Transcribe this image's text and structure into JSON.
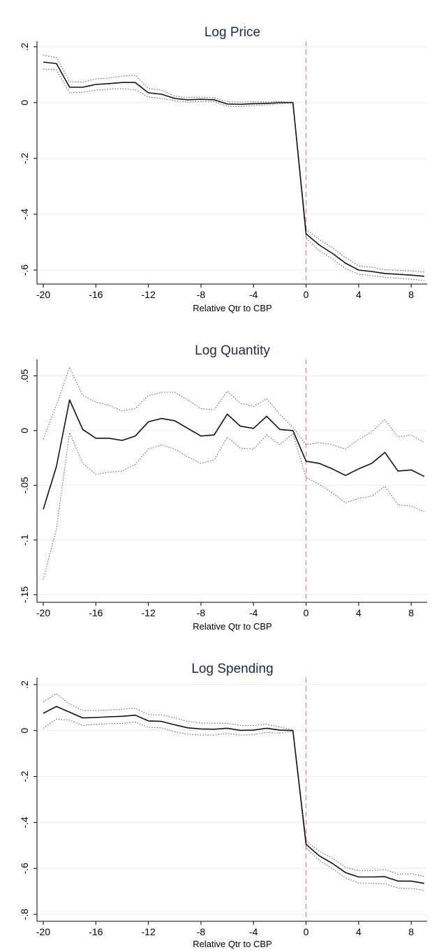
{
  "figure": {
    "accent_reference_color": "#e8889a"
  },
  "chart_data": [
    {
      "type": "line",
      "title": "Log Price",
      "xlabel": "Relative Qtr to CBP",
      "ylabel": "",
      "xlim": [
        -20,
        9
      ],
      "ylim": [
        -0.65,
        0.22
      ],
      "xticks": [
        -20,
        -16,
        -12,
        -8,
        -4,
        0,
        4,
        8
      ],
      "xtick_labels": [
        "-20",
        "-16",
        "-12",
        "-8",
        "-4",
        "0",
        "4",
        "8"
      ],
      "yticks": [
        0.2,
        0,
        -0.2,
        -0.4,
        -0.6
      ],
      "ytick_labels": [
        ".2",
        "0",
        "-.2",
        "-.4",
        "-.6"
      ],
      "vline_x": 0,
      "grid": true,
      "x": [
        -20,
        -19,
        -18,
        -17,
        -16,
        -15,
        -14,
        -13,
        -12,
        -11,
        -10,
        -9,
        -8,
        -7,
        -6,
        -5,
        -4,
        -3,
        -2,
        -1,
        0,
        1,
        2,
        3,
        4,
        5,
        6,
        7,
        8,
        9
      ],
      "series": [
        {
          "role": "estimate",
          "values": [
            0.145,
            0.14,
            0.055,
            0.055,
            0.065,
            0.068,
            0.072,
            0.072,
            0.035,
            0.03,
            0.015,
            0.01,
            0.012,
            0.01,
            -0.005,
            -0.006,
            -0.004,
            -0.003,
            0.0,
            0.0,
            -0.47,
            -0.51,
            -0.54,
            -0.575,
            -0.6,
            -0.605,
            -0.612,
            -0.615,
            -0.618,
            -0.622
          ]
        },
        {
          "role": "ci_upper",
          "values": [
            0.17,
            0.162,
            0.075,
            0.073,
            0.085,
            0.088,
            0.095,
            0.098,
            0.05,
            0.045,
            0.023,
            0.018,
            0.02,
            0.017,
            0.003,
            0.002,
            0.003,
            0.002,
            0.004,
            0.001,
            -0.455,
            -0.49,
            -0.52,
            -0.555,
            -0.585,
            -0.59,
            -0.598,
            -0.601,
            -0.603,
            -0.607
          ]
        },
        {
          "role": "ci_lower",
          "values": [
            0.12,
            0.118,
            0.035,
            0.037,
            0.045,
            0.048,
            0.05,
            0.046,
            0.02,
            0.015,
            0.007,
            0.002,
            0.004,
            0.003,
            -0.013,
            -0.014,
            -0.011,
            -0.008,
            -0.004,
            -0.001,
            -0.485,
            -0.53,
            -0.56,
            -0.595,
            -0.615,
            -0.62,
            -0.626,
            -0.629,
            -0.633,
            -0.637
          ]
        }
      ]
    },
    {
      "type": "line",
      "title": "Log Quantity",
      "xlabel": "Relative Qtr to CBP",
      "ylabel": "",
      "xlim": [
        -20,
        9
      ],
      "ylim": [
        -0.157,
        0.065
      ],
      "xticks": [
        -20,
        -16,
        -12,
        -8,
        -4,
        0,
        4,
        8
      ],
      "xtick_labels": [
        "-20",
        "-16",
        "-12",
        "-8",
        "-4",
        "0",
        "4",
        "8"
      ],
      "yticks": [
        0.05,
        0,
        -0.05,
        -0.1,
        -0.15
      ],
      "ytick_labels": [
        ".05",
        "0",
        "-.05",
        "-.1",
        "-.15"
      ],
      "vline_x": 0,
      "grid": true,
      "x": [
        -20,
        -19,
        -18,
        -17,
        -16,
        -15,
        -14,
        -13,
        -12,
        -11,
        -10,
        -9,
        -8,
        -7,
        -6,
        -5,
        -4,
        -3,
        -2,
        -1,
        0,
        1,
        2,
        3,
        4,
        5,
        6,
        7,
        8,
        9
      ],
      "series": [
        {
          "role": "estimate",
          "values": [
            -0.072,
            -0.033,
            0.028,
            0.001,
            -0.007,
            -0.007,
            -0.009,
            -0.005,
            0.008,
            0.011,
            0.009,
            0.002,
            -0.005,
            -0.004,
            0.015,
            0.004,
            0.002,
            0.013,
            0.001,
            0.0,
            -0.028,
            -0.03,
            -0.035,
            -0.041,
            -0.035,
            -0.03,
            -0.02,
            -0.037,
            -0.036,
            -0.042
          ]
        },
        {
          "role": "ci_upper",
          "values": [
            -0.008,
            0.023,
            0.058,
            0.032,
            0.026,
            0.023,
            0.018,
            0.02,
            0.032,
            0.035,
            0.035,
            0.028,
            0.02,
            0.019,
            0.036,
            0.025,
            0.022,
            0.029,
            0.015,
            0.003,
            -0.013,
            -0.011,
            -0.013,
            -0.017,
            -0.008,
            -0.001,
            0.01,
            -0.006,
            -0.004,
            -0.011
          ]
        },
        {
          "role": "ci_lower",
          "values": [
            -0.136,
            -0.09,
            -0.002,
            -0.03,
            -0.04,
            -0.038,
            -0.037,
            -0.031,
            -0.017,
            -0.013,
            -0.017,
            -0.024,
            -0.03,
            -0.027,
            -0.006,
            -0.016,
            -0.017,
            -0.004,
            -0.013,
            -0.003,
            -0.043,
            -0.049,
            -0.057,
            -0.066,
            -0.062,
            -0.06,
            -0.051,
            -0.068,
            -0.069,
            -0.074
          ]
        }
      ]
    },
    {
      "type": "line",
      "title": "Log Spending",
      "xlabel": "Relative Qtr to CBP",
      "ylabel": "",
      "xlim": [
        -20,
        9
      ],
      "ylim": [
        -0.83,
        0.23
      ],
      "xticks": [
        -20,
        -16,
        -12,
        -8,
        -4,
        0,
        4,
        8
      ],
      "xtick_labels": [
        "-20",
        "-16",
        "-12",
        "-8",
        "-4",
        "0",
        "4",
        "8"
      ],
      "yticks": [
        0.2,
        0,
        -0.2,
        -0.4,
        -0.6,
        -0.8
      ],
      "ytick_labels": [
        ".2",
        "0",
        "-.2",
        "-.4",
        "-.6",
        "-.8"
      ],
      "vline_x": 0,
      "grid": true,
      "x": [
        -20,
        -19,
        -18,
        -17,
        -16,
        -15,
        -14,
        -13,
        -12,
        -11,
        -10,
        -9,
        -8,
        -7,
        -6,
        -5,
        -4,
        -3,
        -2,
        -1,
        0,
        1,
        2,
        3,
        4,
        5,
        6,
        7,
        8,
        9
      ],
      "series": [
        {
          "role": "estimate",
          "values": [
            0.075,
            0.105,
            0.08,
            0.055,
            0.057,
            0.06,
            0.062,
            0.067,
            0.042,
            0.04,
            0.025,
            0.012,
            0.007,
            0.006,
            0.01,
            0.001,
            0.002,
            0.01,
            0.002,
            0.0,
            -0.495,
            -0.545,
            -0.578,
            -0.618,
            -0.637,
            -0.637,
            -0.636,
            -0.655,
            -0.655,
            -0.665
          ]
        },
        {
          "role": "ci_upper",
          "values": [
            0.125,
            0.16,
            0.115,
            0.088,
            0.087,
            0.09,
            0.093,
            0.097,
            0.07,
            0.068,
            0.055,
            0.04,
            0.033,
            0.032,
            0.032,
            0.022,
            0.022,
            0.028,
            0.015,
            0.003,
            -0.48,
            -0.525,
            -0.555,
            -0.595,
            -0.61,
            -0.61,
            -0.605,
            -0.625,
            -0.623,
            -0.635
          ]
        },
        {
          "role": "ci_lower",
          "values": [
            0.01,
            0.05,
            0.045,
            0.022,
            0.027,
            0.03,
            0.031,
            0.037,
            0.014,
            0.012,
            -0.005,
            -0.016,
            -0.019,
            -0.02,
            -0.012,
            -0.02,
            -0.018,
            -0.008,
            -0.011,
            -0.003,
            -0.51,
            -0.565,
            -0.601,
            -0.641,
            -0.664,
            -0.664,
            -0.667,
            -0.685,
            -0.687,
            -0.695
          ]
        }
      ]
    }
  ]
}
